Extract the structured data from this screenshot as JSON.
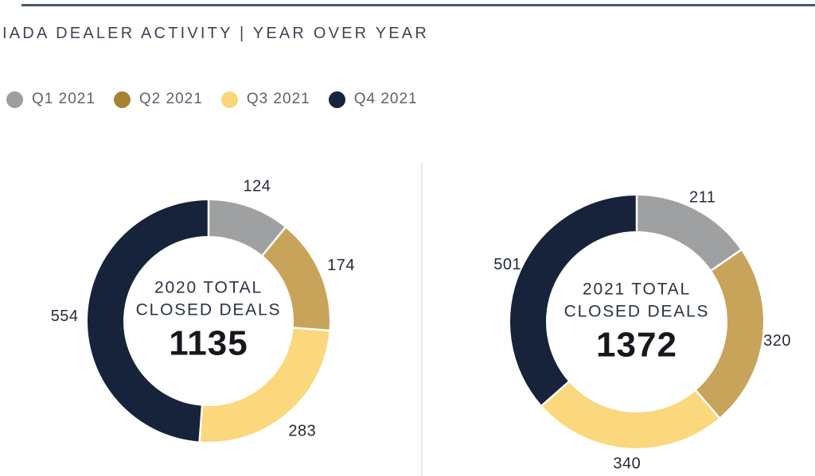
{
  "header": {
    "title": "IADA DEALER ACTIVITY | YEAR OVER YEAR"
  },
  "legend": {
    "items": [
      {
        "label": "Q1 2021",
        "color": "#9E9E9F"
      },
      {
        "label": "Q2 2021",
        "color": "#A6842F"
      },
      {
        "label": "Q3 2021",
        "color": "#FAD67B"
      },
      {
        "label": "Q4 2021",
        "color": "#16243E"
      }
    ]
  },
  "colors": {
    "top_rule": "#45566A",
    "divider": "#E8EAEA",
    "title_text": "#3C4654",
    "legend_text": "#5B636E",
    "value_label_text": "#242B35"
  },
  "chart_data": [
    {
      "type": "pie",
      "subtype": "donut",
      "title": "2020 TOTAL CLOSED DEALS",
      "center_label_lines": [
        "2020 TOTAL",
        "CLOSED DEALS"
      ],
      "total": 1135,
      "categories": [
        "Q1",
        "Q2",
        "Q3",
        "Q4"
      ],
      "values": [
        124,
        174,
        283,
        554
      ],
      "colors": [
        "#9FA0A1",
        "#C8A45B",
        "#FBD77D",
        "#16233A"
      ],
      "start_angle_deg": 0,
      "direction": "clockwise",
      "data_labels": "outside",
      "legend_position": "top-shared"
    },
    {
      "type": "pie",
      "subtype": "donut",
      "title": "2021 TOTAL CLOSED DEALS",
      "center_label_lines": [
        "2021 TOTAL",
        "CLOSED DEALS"
      ],
      "total": 1372,
      "categories": [
        "Q1",
        "Q2",
        "Q3",
        "Q4"
      ],
      "values": [
        211,
        320,
        340,
        501
      ],
      "colors": [
        "#9FA0A1",
        "#C8A45B",
        "#FBD77D",
        "#16233A"
      ],
      "start_angle_deg": 0,
      "direction": "clockwise",
      "data_labels": "outside",
      "legend_position": "top-shared"
    }
  ]
}
